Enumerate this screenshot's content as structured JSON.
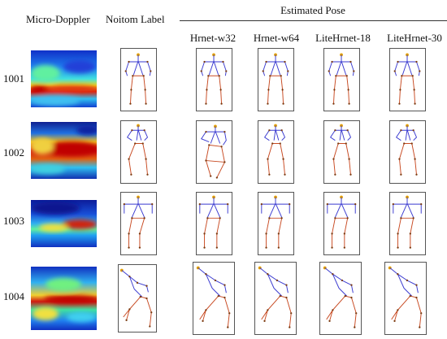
{
  "header": {
    "micro_doppler": "Micro-Doppler",
    "noitom_label": "Noitom Label",
    "estimated_pose": "Estimated Pose",
    "models": [
      "Hrnet-w32",
      "Hrnet-w64",
      "LiteHrnet-18",
      "LiteHrnet-30"
    ]
  },
  "rows": [
    {
      "id": "1001"
    },
    {
      "id": "1002"
    },
    {
      "id": "1003"
    },
    {
      "id": "1004"
    }
  ],
  "colors": {
    "upper_limb": "#3a3ad0",
    "lower_limb": "#c84a22",
    "joint": "#7a3a10",
    "head": "#e6a000"
  }
}
